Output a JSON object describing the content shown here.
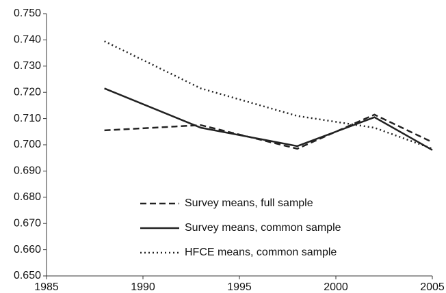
{
  "chart_data": {
    "type": "line",
    "x": [
      1988,
      1993,
      1998,
      2002,
      2005
    ],
    "series": [
      {
        "name": "Survey means, full sample",
        "color": "#222222",
        "dash": "9,5",
        "values": [
          0.7055,
          0.7075,
          0.6985,
          0.7115,
          0.701
        ]
      },
      {
        "name": "Survey means, common sample",
        "color": "#222222",
        "dash": "none",
        "values": [
          0.7215,
          0.7065,
          0.6995,
          0.7105,
          0.698
        ]
      },
      {
        "name": "HFCE means, common sample",
        "color": "#222222",
        "dash": "2,4",
        "values": [
          0.7395,
          0.7215,
          0.711,
          0.7065,
          0.6985
        ]
      }
    ],
    "xlim": [
      1985,
      2005
    ],
    "xticks": [
      1985,
      1990,
      1995,
      2000,
      2005
    ],
    "ylim": [
      0.65,
      0.75
    ],
    "yticks": [
      {
        "value": 0.65,
        "label": "0.650"
      },
      {
        "value": 0.66,
        "label": "0.660"
      },
      {
        "value": 0.67,
        "label": "0.670"
      },
      {
        "value": 0.68,
        "label": "0.680"
      },
      {
        "value": 0.69,
        "label": "0.690"
      },
      {
        "value": 0.7,
        "label": "0.700"
      },
      {
        "value": 0.71,
        "label": "0.710"
      },
      {
        "value": 0.72,
        "label": "0.720"
      },
      {
        "value": 0.73,
        "label": "0.730"
      },
      {
        "value": 0.74,
        "label": "0.740"
      },
      {
        "value": 0.75,
        "label": "0.750"
      }
    ],
    "grid": false,
    "legend": "bottom"
  }
}
